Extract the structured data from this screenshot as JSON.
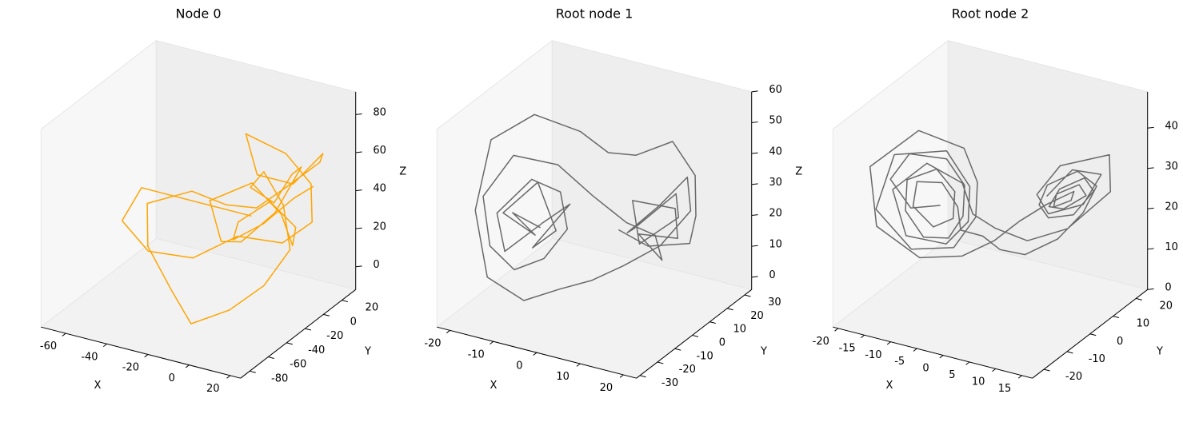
{
  "chart_data": [
    {
      "type": "line3d",
      "title": "Node 0",
      "x_label": "X",
      "y_label": "Y",
      "z_label": "Z",
      "xlim": [
        -72,
        25
      ],
      "ylim": [
        -90,
        35
      ],
      "zlim": [
        -12,
        92
      ],
      "xticks": [
        -60,
        -40,
        -20,
        0,
        20
      ],
      "yticks": [
        -80,
        -60,
        -40,
        -20,
        0,
        20
      ],
      "zticks": [
        0,
        20,
        40,
        60,
        80
      ],
      "series": [
        {
          "color": "#ffa500",
          "x": [
            -10,
            -20,
            -35,
            -50,
            -55,
            -40,
            -25,
            -10,
            5,
            15,
            10,
            0,
            -15,
            -5,
            8,
            18,
            12,
            -2,
            -12,
            -20,
            -30,
            -45,
            -38,
            -22,
            -8,
            4,
            14,
            20,
            10,
            -4,
            -15,
            -8,
            3,
            12,
            6,
            -6,
            -18,
            -28,
            -12,
            0,
            10,
            16,
            8,
            -3,
            -10,
            -2,
            6,
            12
          ],
          "y": [
            0,
            -10,
            -20,
            -30,
            -40,
            -45,
            -30,
            -15,
            0,
            10,
            20,
            15,
            5,
            -5,
            5,
            15,
            25,
            20,
            10,
            -5,
            -20,
            -35,
            -50,
            -60,
            -70,
            -55,
            -40,
            -25,
            -10,
            0,
            10,
            20,
            15,
            5,
            -10,
            -20,
            -15,
            -5,
            5,
            10,
            0,
            -10,
            -20,
            -30,
            -20,
            -5,
            10,
            18
          ],
          "z": [
            30,
            35,
            40,
            45,
            30,
            20,
            15,
            25,
            20,
            30,
            45,
            60,
            70,
            55,
            50,
            65,
            55,
            40,
            30,
            35,
            45,
            40,
            25,
            10,
            0,
            5,
            15,
            30,
            45,
            55,
            40,
            30,
            50,
            60,
            40,
            25,
            20,
            35,
            45,
            30,
            20,
            35,
            50,
            40,
            25,
            30,
            40,
            45
          ]
        }
      ]
    },
    {
      "type": "line3d",
      "title": "Root node 1",
      "x_label": "X",
      "y_label": "Y",
      "z_label": "Z",
      "xlim": [
        -23,
        23
      ],
      "ylim": [
        -32,
        34
      ],
      "zlim": [
        -4,
        60
      ],
      "xticks": [
        -20,
        -10,
        0,
        10,
        20
      ],
      "yticks": [
        -30,
        -20,
        -10,
        0,
        10,
        20,
        30
      ],
      "zticks": [
        0,
        10,
        20,
        30,
        40,
        50,
        60
      ],
      "series": [
        {
          "color": "#696969",
          "x": [
            -8,
            -12,
            -10,
            -15,
            -11,
            -6,
            -9,
            -4,
            -8,
            -13,
            -16,
            -12,
            -7,
            -3,
            -6,
            -10,
            -14,
            -18,
            -15,
            -8,
            -2,
            3,
            8,
            12,
            9,
            14,
            11,
            6,
            10,
            15,
            12,
            7,
            4,
            9,
            13,
            17,
            14,
            8,
            3,
            -2,
            -7,
            -13,
            -19,
            -21,
            -15,
            -6,
            -2,
            2,
            8,
            14,
            19,
            20,
            12,
            6
          ],
          "y": [
            -10,
            -16,
            -8,
            -14,
            -4,
            -6,
            -12,
            -3,
            -9,
            -18,
            -15,
            -5,
            -1,
            -7,
            -13,
            -20,
            -24,
            -18,
            -8,
            0,
            5,
            12,
            16,
            10,
            4,
            14,
            20,
            8,
            2,
            12,
            18,
            6,
            10,
            16,
            22,
            14,
            4,
            -2,
            -8,
            -14,
            -22,
            -28,
            -20,
            -6,
            4,
            8,
            14,
            20,
            26,
            24,
            12,
            6,
            2,
            0
          ],
          "z": [
            24,
            30,
            20,
            28,
            35,
            22,
            18,
            30,
            25,
            18,
            28,
            36,
            32,
            24,
            16,
            14,
            22,
            34,
            44,
            40,
            30,
            20,
            16,
            12,
            22,
            18,
            24,
            30,
            20,
            26,
            30,
            22,
            18,
            26,
            34,
            28,
            20,
            14,
            10,
            8,
            6,
            14,
            30,
            46,
            52,
            48,
            40,
            38,
            42,
            34,
            28,
            22,
            20,
            24
          ]
        }
      ]
    },
    {
      "type": "line3d",
      "title": "Root node 2",
      "x_label": "X",
      "y_label": "Y",
      "z_label": "Z",
      "xlim": [
        -21,
        17
      ],
      "ylim": [
        -25,
        25
      ],
      "zlim": [
        0,
        49
      ],
      "xticks": [
        -20,
        -15,
        -10,
        -5,
        0,
        5,
        10,
        15
      ],
      "yticks": [
        -20,
        -10,
        0,
        10,
        20
      ],
      "zticks": [
        0,
        10,
        20,
        30,
        40
      ],
      "series": [
        {
          "color": "#696969",
          "x": [
            -8,
            -11,
            -14,
            -13,
            -9,
            -6,
            -5,
            -6,
            -9,
            -12,
            -13,
            -10,
            -7,
            -6,
            -8,
            -11,
            -12,
            -9,
            -6,
            -5,
            -3,
            -1,
            2,
            6,
            10,
            13,
            12,
            8,
            6,
            6,
            9,
            12,
            12,
            9,
            7,
            8,
            11,
            11,
            8,
            7,
            9,
            10,
            7,
            4,
            1,
            -3,
            -8,
            -14,
            -17,
            -13,
            -7,
            -4,
            -3,
            -5,
            -10,
            -15,
            -15,
            -9,
            -5,
            -4,
            -6,
            -11,
            -14,
            -11,
            -6,
            -4,
            -2,
            2,
            7,
            13,
            15,
            10,
            6,
            6,
            10,
            13,
            11,
            7
          ],
          "y": [
            -8,
            -14,
            -16,
            -10,
            -3,
            -2,
            -5,
            -9,
            -13,
            -14,
            -11,
            -5,
            -4,
            -7,
            -11,
            -13,
            -9,
            -5,
            -5,
            -6,
            -1,
            2,
            6,
            11,
            13,
            12,
            6,
            2,
            3,
            7,
            11,
            13,
            9,
            5,
            5,
            9,
            12,
            9,
            6,
            7,
            10,
            9,
            4,
            -1,
            -5,
            -10,
            -17,
            -22,
            -18,
            -6,
            0,
            -1,
            -4,
            -9,
            -16,
            -20,
            -12,
            -3,
            -2,
            -5,
            -10,
            -16,
            -15,
            -7,
            -3,
            -3,
            2,
            7,
            13,
            18,
            13,
            3,
            2,
            7,
            13,
            14,
            6,
            4
          ],
          "z": [
            27,
            28,
            35,
            39,
            36,
            30,
            24,
            20,
            21,
            27,
            33,
            34,
            29,
            24,
            23,
            28,
            32,
            31,
            26,
            21,
            18,
            14,
            12,
            15,
            22,
            30,
            36,
            33,
            27,
            22,
            22,
            28,
            33,
            31,
            26,
            24,
            27,
            31,
            29,
            25,
            26,
            29,
            27,
            24,
            20,
            17,
            18,
            26,
            38,
            43,
            38,
            31,
            24,
            18,
            19,
            29,
            39,
            38,
            30,
            23,
            19,
            22,
            32,
            36,
            31,
            24,
            19,
            15,
            17,
            26,
            38,
            38,
            30,
            23,
            24,
            32,
            36,
            29
          ]
        }
      ]
    }
  ]
}
